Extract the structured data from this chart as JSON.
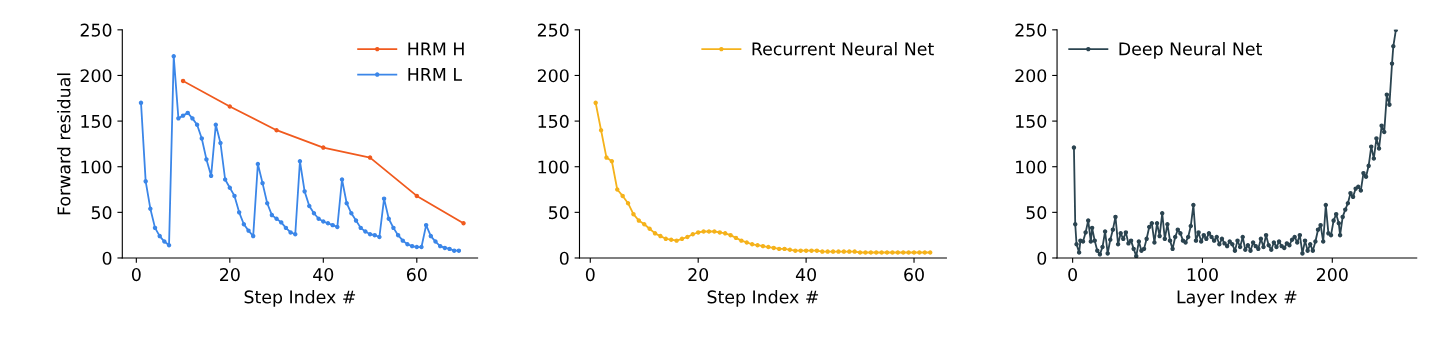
{
  "chart_data": [
    {
      "type": "line",
      "xlabel": "Step Index #",
      "ylabel": "Forward residual",
      "xlim": [
        -3,
        73
      ],
      "xticks": [
        0,
        20,
        40,
        60
      ],
      "ylim": [
        0,
        250
      ],
      "yticks": [
        0,
        50,
        100,
        150,
        200,
        250
      ],
      "grid": false,
      "legend": "top right",
      "marker": "circle",
      "line_style": "solid",
      "series": [
        {
          "name": "HRM H",
          "color": "#f05a1e",
          "x": [
            10,
            20,
            30,
            40,
            50,
            60,
            70
          ],
          "values": [
            194,
            166,
            140,
            121,
            110,
            68,
            38
          ]
        },
        {
          "name": "HRM L",
          "color": "#3b86e8",
          "x": [
            1,
            2,
            3,
            4,
            5,
            6,
            7,
            8,
            9,
            10,
            11,
            12,
            13,
            14,
            15,
            16,
            17,
            18,
            19,
            20,
            21,
            22,
            23,
            24,
            25,
            26,
            27,
            28,
            29,
            30,
            31,
            32,
            33,
            34,
            35,
            36,
            37,
            38,
            39,
            40,
            41,
            42,
            43,
            44,
            45,
            46,
            47,
            48,
            49,
            50,
            51,
            52,
            53,
            54,
            55,
            56,
            57,
            58,
            59,
            60,
            61,
            62,
            63,
            64,
            65,
            66,
            67,
            68,
            69
          ],
          "values": [
            170,
            84,
            54,
            33,
            24,
            18,
            14,
            221,
            153,
            156,
            159,
            153,
            146,
            131,
            108,
            90,
            146,
            126,
            86,
            77,
            68,
            50,
            37,
            30,
            24,
            103,
            82,
            60,
            47,
            43,
            39,
            33,
            28,
            26,
            106,
            73,
            57,
            49,
            43,
            40,
            38,
            36,
            34,
            86,
            60,
            49,
            41,
            33,
            29,
            26,
            25,
            23,
            65,
            43,
            33,
            25,
            19,
            15,
            13,
            12,
            12,
            36,
            24,
            18,
            13,
            11,
            10,
            8,
            8
          ]
        }
      ]
    },
    {
      "type": "line",
      "xlabel": "Step Index #",
      "xlim": [
        -2,
        66
      ],
      "xticks": [
        0,
        20,
        40,
        60
      ],
      "ylim": [
        0,
        250
      ],
      "yticks": [
        0,
        50,
        100,
        150,
        200,
        250
      ],
      "grid": false,
      "legend": "top right",
      "marker": "circle",
      "line_style": "solid",
      "series": [
        {
          "name": "Recurrent Neural Net",
          "color": "#f5b21b",
          "x": [
            1,
            2,
            3,
            4,
            5,
            6,
            7,
            8,
            9,
            10,
            11,
            12,
            13,
            14,
            15,
            16,
            17,
            18,
            19,
            20,
            21,
            22,
            23,
            24,
            25,
            26,
            27,
            28,
            29,
            30,
            31,
            32,
            33,
            34,
            35,
            36,
            37,
            38,
            39,
            40,
            41,
            42,
            43,
            44,
            45,
            46,
            47,
            48,
            49,
            50,
            51,
            52,
            53,
            54,
            55,
            56,
            57,
            58,
            59,
            60,
            61,
            62,
            63
          ],
          "values": [
            170,
            140,
            110,
            106,
            75,
            68,
            60,
            48,
            41,
            37,
            32,
            27,
            24,
            21,
            20,
            19,
            21,
            23,
            26,
            28,
            29,
            29,
            29,
            28,
            27,
            25,
            22,
            19,
            17,
            15,
            14,
            13,
            12,
            11,
            10,
            10,
            9,
            8,
            8,
            8,
            8,
            8,
            7,
            7,
            7,
            7,
            7,
            7,
            7,
            6,
            6,
            6,
            6,
            6,
            6,
            6,
            6,
            6,
            6,
            6,
            6,
            6,
            6
          ]
        }
      ]
    },
    {
      "type": "line",
      "xlabel": "Layer Index #",
      "xlim": [
        -12,
        265
      ],
      "xticks": [
        0,
        100,
        200
      ],
      "ylim": [
        0,
        250
      ],
      "yticks": [
        0,
        50,
        100,
        150,
        200,
        250
      ],
      "grid": false,
      "legend": "top left",
      "marker": "circle",
      "line_style": "solid",
      "series": [
        {
          "name": "Deep Neural Net",
          "color": "#2b4450",
          "x": [
            1,
            2,
            3,
            5,
            6,
            8,
            10,
            12,
            14,
            15,
            17,
            19,
            21,
            23,
            25,
            27,
            29,
            31,
            33,
            35,
            37,
            39,
            41,
            43,
            45,
            47,
            49,
            51,
            53,
            55,
            57,
            59,
            61,
            63,
            65,
            67,
            69,
            71,
            73,
            75,
            77,
            79,
            81,
            83,
            85,
            87,
            89,
            91,
            93,
            95,
            97,
            99,
            101,
            103,
            105,
            107,
            109,
            111,
            113,
            115,
            117,
            119,
            121,
            123,
            125,
            127,
            129,
            131,
            133,
            135,
            137,
            139,
            141,
            143,
            145,
            147,
            149,
            151,
            153,
            155,
            157,
            159,
            161,
            163,
            165,
            167,
            169,
            171,
            173,
            175,
            177,
            179,
            181,
            183,
            185,
            187,
            189,
            191,
            193,
            195,
            197,
            199,
            201,
            203,
            205,
            206,
            208,
            210,
            212,
            214,
            216,
            218,
            220,
            222,
            224,
            226,
            228,
            230,
            232,
            234,
            236,
            238,
            240,
            242,
            244,
            246,
            247,
            249
          ],
          "values": [
            121,
            37,
            15,
            6,
            19,
            18,
            28,
            41,
            18,
            33,
            19,
            8,
            4,
            12,
            29,
            5,
            20,
            31,
            45,
            15,
            27,
            21,
            28,
            16,
            19,
            10,
            2,
            18,
            8,
            10,
            21,
            34,
            38,
            17,
            38,
            24,
            49,
            21,
            37,
            19,
            10,
            23,
            31,
            27,
            19,
            17,
            23,
            35,
            58,
            19,
            28,
            18,
            25,
            21,
            27,
            23,
            19,
            23,
            15,
            21,
            16,
            13,
            18,
            15,
            8,
            19,
            12,
            23,
            9,
            14,
            8,
            17,
            13,
            10,
            21,
            12,
            25,
            14,
            9,
            17,
            12,
            18,
            13,
            11,
            16,
            14,
            20,
            23,
            17,
            25,
            5,
            19,
            8,
            15,
            8,
            18,
            31,
            36,
            18,
            58,
            27,
            25,
            41,
            48,
            38,
            25,
            45,
            53,
            60,
            71,
            67,
            76,
            78,
            74,
            93,
            89,
            101,
            122,
            109,
            131,
            120,
            145,
            138,
            179,
            168,
            213,
            232,
            250
          ]
        }
      ]
    }
  ]
}
